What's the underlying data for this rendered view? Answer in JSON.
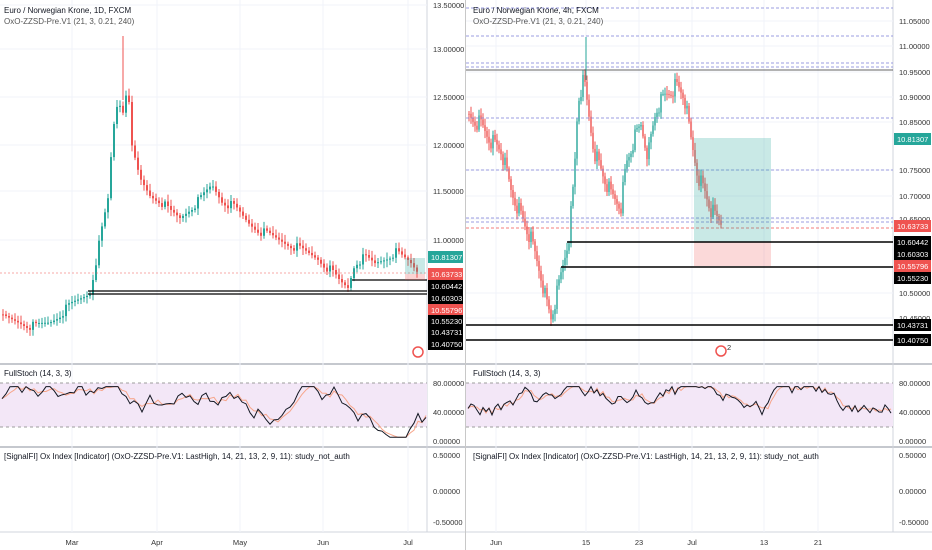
{
  "left_chart": {
    "title": "Euro / Norwegian Krone, 1D, FXCM",
    "indicator": "OxO-ZZSD-Pre.V1 (21, 3, 0.21, 240)",
    "price_ticks": [
      "13.50000",
      "13.00000",
      "12.50000",
      "12.00000",
      "11.50000",
      "11.00000"
    ],
    "price_tags": [
      {
        "text": "10.81307",
        "bg": "#26a69a",
        "fg": "#ffffff"
      },
      {
        "text": "10.63733",
        "bg": "#ef5350",
        "fg": "#ffffff"
      },
      {
        "text": "10.60442",
        "bg": "#000000",
        "fg": "#ffffff"
      },
      {
        "text": "10.60303",
        "bg": "#000000",
        "fg": "#ffffff"
      },
      {
        "text": "10.55796",
        "bg": "#ef5350",
        "fg": "#ffffff"
      },
      {
        "text": "10.55230",
        "bg": "#000000",
        "fg": "#ffffff"
      },
      {
        "text": "10.43731",
        "bg": "#000000",
        "fg": "#ffffff"
      },
      {
        "text": "10.40750",
        "bg": "#000000",
        "fg": "#ffffff"
      }
    ],
    "stoch_title": "FullStoch (14, 3, 3)",
    "stoch_ticks": [
      "80.00000",
      "40.00000",
      "0.00000"
    ],
    "ox_title": "[SignalFI] Ox Index [Indicator] (OxO-ZZSD-Pre.V1: LastHigh, 14, 21, 13, 2, 9, 11): study_not_auth",
    "ox_ticks": [
      "0.50000",
      "0.00000",
      "-0.50000"
    ],
    "time_ticks": [
      "Mar",
      "Apr",
      "May",
      "Jun",
      "Jul"
    ]
  },
  "right_chart": {
    "title": "Euro / Norwegian Krone, 4h, FXCM",
    "indicator": "OxO-ZZSD-Pre.V1 (21, 3, 0.21, 240)",
    "price_ticks": [
      "11.05000",
      "11.00000",
      "10.95000",
      "10.90000",
      "10.85000",
      "10.75000",
      "10.70000",
      "10.65000",
      "10.50000",
      "10.45000"
    ],
    "price_tags": [
      {
        "text": "10.81307",
        "bg": "#26a69a",
        "fg": "#ffffff"
      },
      {
        "text": "10.63733",
        "bg": "#ef5350",
        "fg": "#ffffff"
      },
      {
        "text": "10.60442",
        "bg": "#000000",
        "fg": "#ffffff"
      },
      {
        "text": "10.60303",
        "bg": "#000000",
        "fg": "#ffffff"
      },
      {
        "text": "10.55796",
        "bg": "#ef5350",
        "fg": "#ffffff"
      },
      {
        "text": "10.55230",
        "bg": "#000000",
        "fg": "#ffffff"
      },
      {
        "text": "10.43731",
        "bg": "#000000",
        "fg": "#ffffff"
      },
      {
        "text": "10.40750",
        "bg": "#000000",
        "fg": "#ffffff"
      }
    ],
    "stoch_title": "FullStoch (14, 3, 3)",
    "stoch_ticks": [
      "80.00000",
      "40.00000",
      "0.00000"
    ],
    "ox_title": "[SignalFI] Ox Index [Indicator] (OxO-ZZSD-Pre.V1: LastHigh, 14, 21, 13, 2, 9, 11): study_not_auth",
    "ox_ticks": [
      "0.50000",
      "0.00000",
      "-0.50000"
    ],
    "time_ticks": [
      "Jun",
      "15",
      "23",
      "Jul",
      "13",
      "21"
    ],
    "badge": "2"
  },
  "colors": {
    "up": "#26a69a",
    "down": "#ef5350",
    "stoch_k": "#131722",
    "stoch_d": "#f7a58a",
    "band": "#f3e7f7"
  }
}
